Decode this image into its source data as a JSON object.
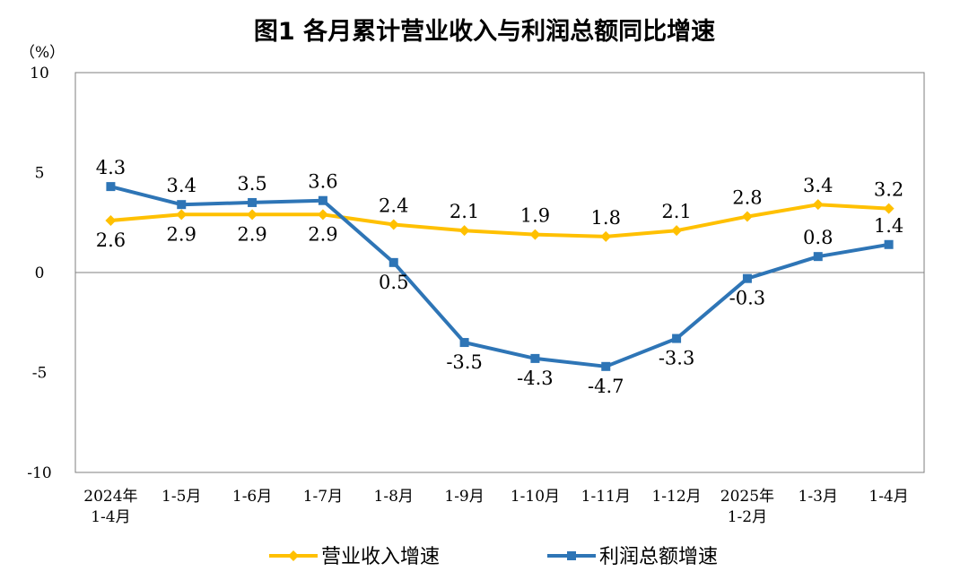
{
  "chart_data": {
    "type": "line",
    "title": "图1  各月累计营业收入与利润总额同比增速",
    "unit_label": "（%）",
    "ylim": [
      -10,
      10
    ],
    "y_ticks": [
      10,
      5,
      0,
      -5,
      -10
    ],
    "grid": false,
    "legend_position": "bottom",
    "categories": [
      [
        "2024年",
        "1-4月"
      ],
      [
        "1-5月"
      ],
      [
        "1-6月"
      ],
      [
        "1-7月"
      ],
      [
        "1-8月"
      ],
      [
        "1-9月"
      ],
      [
        "1-10月"
      ],
      [
        "1-11月"
      ],
      [
        "1-12月"
      ],
      [
        "2025年",
        "1-2月"
      ],
      [
        "1-3月"
      ],
      [
        "1-4月"
      ]
    ],
    "series": [
      {
        "name": "营业收入增速",
        "color": "#FFC000",
        "marker": "diamond",
        "values": [
          2.6,
          2.9,
          2.9,
          2.9,
          2.4,
          2.1,
          1.9,
          1.8,
          2.1,
          2.8,
          3.4,
          3.2
        ],
        "labels": [
          "2.6",
          "2.9",
          "2.9",
          "2.9",
          "2.4",
          "2.1",
          "1.9",
          "1.8",
          "2.1",
          "2.8",
          "3.4",
          "3.2"
        ]
      },
      {
        "name": "利润总额增速",
        "color": "#2E75B6",
        "marker": "square",
        "values": [
          4.3,
          3.4,
          3.5,
          3.6,
          0.5,
          -3.5,
          -4.3,
          -4.7,
          -3.3,
          -0.3,
          0.8,
          1.4
        ],
        "labels": [
          "4.3",
          "3.4",
          "3.5",
          "3.6",
          "0.5",
          "-3.5",
          "-4.3",
          "-4.7",
          "-3.3",
          "-0.3",
          "0.8",
          "1.4"
        ]
      }
    ]
  }
}
